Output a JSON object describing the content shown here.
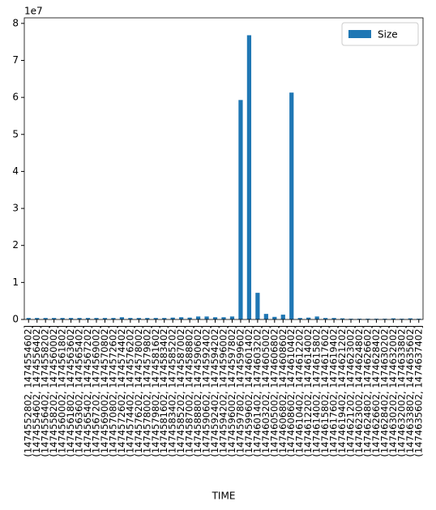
{
  "chart_data": {
    "type": "bar",
    "categories": [
      "(1474552802, 1474554602]",
      "(1474554602, 1474556402]",
      "(1474556402, 1474558202]",
      "(1474558202, 1474560002]",
      "(1474560002, 1474561802]",
      "(1474561802, 1474563602]",
      "(1474563602, 1474565402]",
      "(1474565402, 1474567202]",
      "(1474567202, 1474569002]",
      "(1474569002, 1474570802]",
      "(1474570802, 1474572602]",
      "(1474572602, 1474574402]",
      "(1474574402, 1474576202]",
      "(1474576202, 1474578002]",
      "(1474578002, 1474579802]",
      "(1474579802, 1474581602]",
      "(1474581602, 1474583402]",
      "(1474583402, 1474585202]",
      "(1474585202, 1474587002]",
      "(1474587002, 1474588802]",
      "(1474588802, 1474590602]",
      "(1474590602, 1474592402]",
      "(1474592402, 1474594202]",
      "(1474594202, 1474596002]",
      "(1474596002, 1474597802]",
      "(1474597802, 1474599602]",
      "(1474599602, 1474601402]",
      "(1474601402, 1474603202]",
      "(1474603202, 1474605002]",
      "(1474605002, 1474606802]",
      "(1474606802, 1474608602]",
      "(1474608602, 1474610402]",
      "(1474610402, 1474612202]",
      "(1474612202, 1474614002]",
      "(1474614002, 1474615802]",
      "(1474615802, 1474617602]",
      "(1474617602, 1474619402]",
      "(1474619402, 1474621202]",
      "(1474621202, 1474623002]",
      "(1474623002, 1474624802]",
      "(1474624802, 1474626602]",
      "(1474626602, 1474628402]",
      "(1474628402, 1474630202]",
      "(1474630202, 1474632002]",
      "(1474632002, 1474633802]",
      "(1474633802, 1474635602]",
      "(1474635602, 1474637402]"
    ],
    "series": [
      {
        "name": "Size",
        "color": "#1f77b4",
        "values": [
          0.04,
          0.04,
          0.04,
          0.04,
          0.04,
          0.04,
          0.04,
          0.04,
          0.04,
          0.04,
          0.04,
          0.06,
          0.04,
          0.04,
          0.04,
          0.04,
          0.04,
          0.05,
          0.06,
          0.05,
          0.08,
          0.08,
          0.06,
          0.06,
          0.08,
          5.93,
          7.68,
          0.72,
          0.15,
          0.07,
          0.13,
          6.13,
          0.04,
          0.05,
          0.08,
          0.04,
          0.04,
          0.03,
          0.02,
          0.02,
          0.02,
          0.02,
          0.02,
          0.03,
          0.02,
          0.03,
          0.02
        ]
      }
    ],
    "xlabel": "TIME",
    "y_offset_label": "1e7",
    "ylim": [
      0,
      8.15
    ],
    "yticks": [
      0,
      1,
      2,
      3,
      4,
      5,
      6,
      7,
      8
    ],
    "legend": "upper right"
  }
}
